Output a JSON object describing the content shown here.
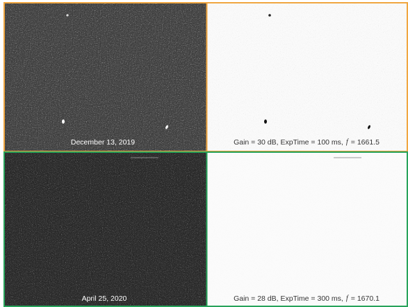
{
  "rows": [
    {
      "date": "December 13, 2019",
      "settings": {
        "prefix": "Gain = 30 dB, ExpTime = 100 ms,",
        "symbol": "f",
        "suffix": "= 1661.5"
      }
    },
    {
      "date": "April 25, 2020",
      "settings": {
        "prefix": "Gain = 28 dB, ExpTime = 300 ms,",
        "symbol": "f",
        "suffix": "= 1670.1"
      }
    }
  ]
}
